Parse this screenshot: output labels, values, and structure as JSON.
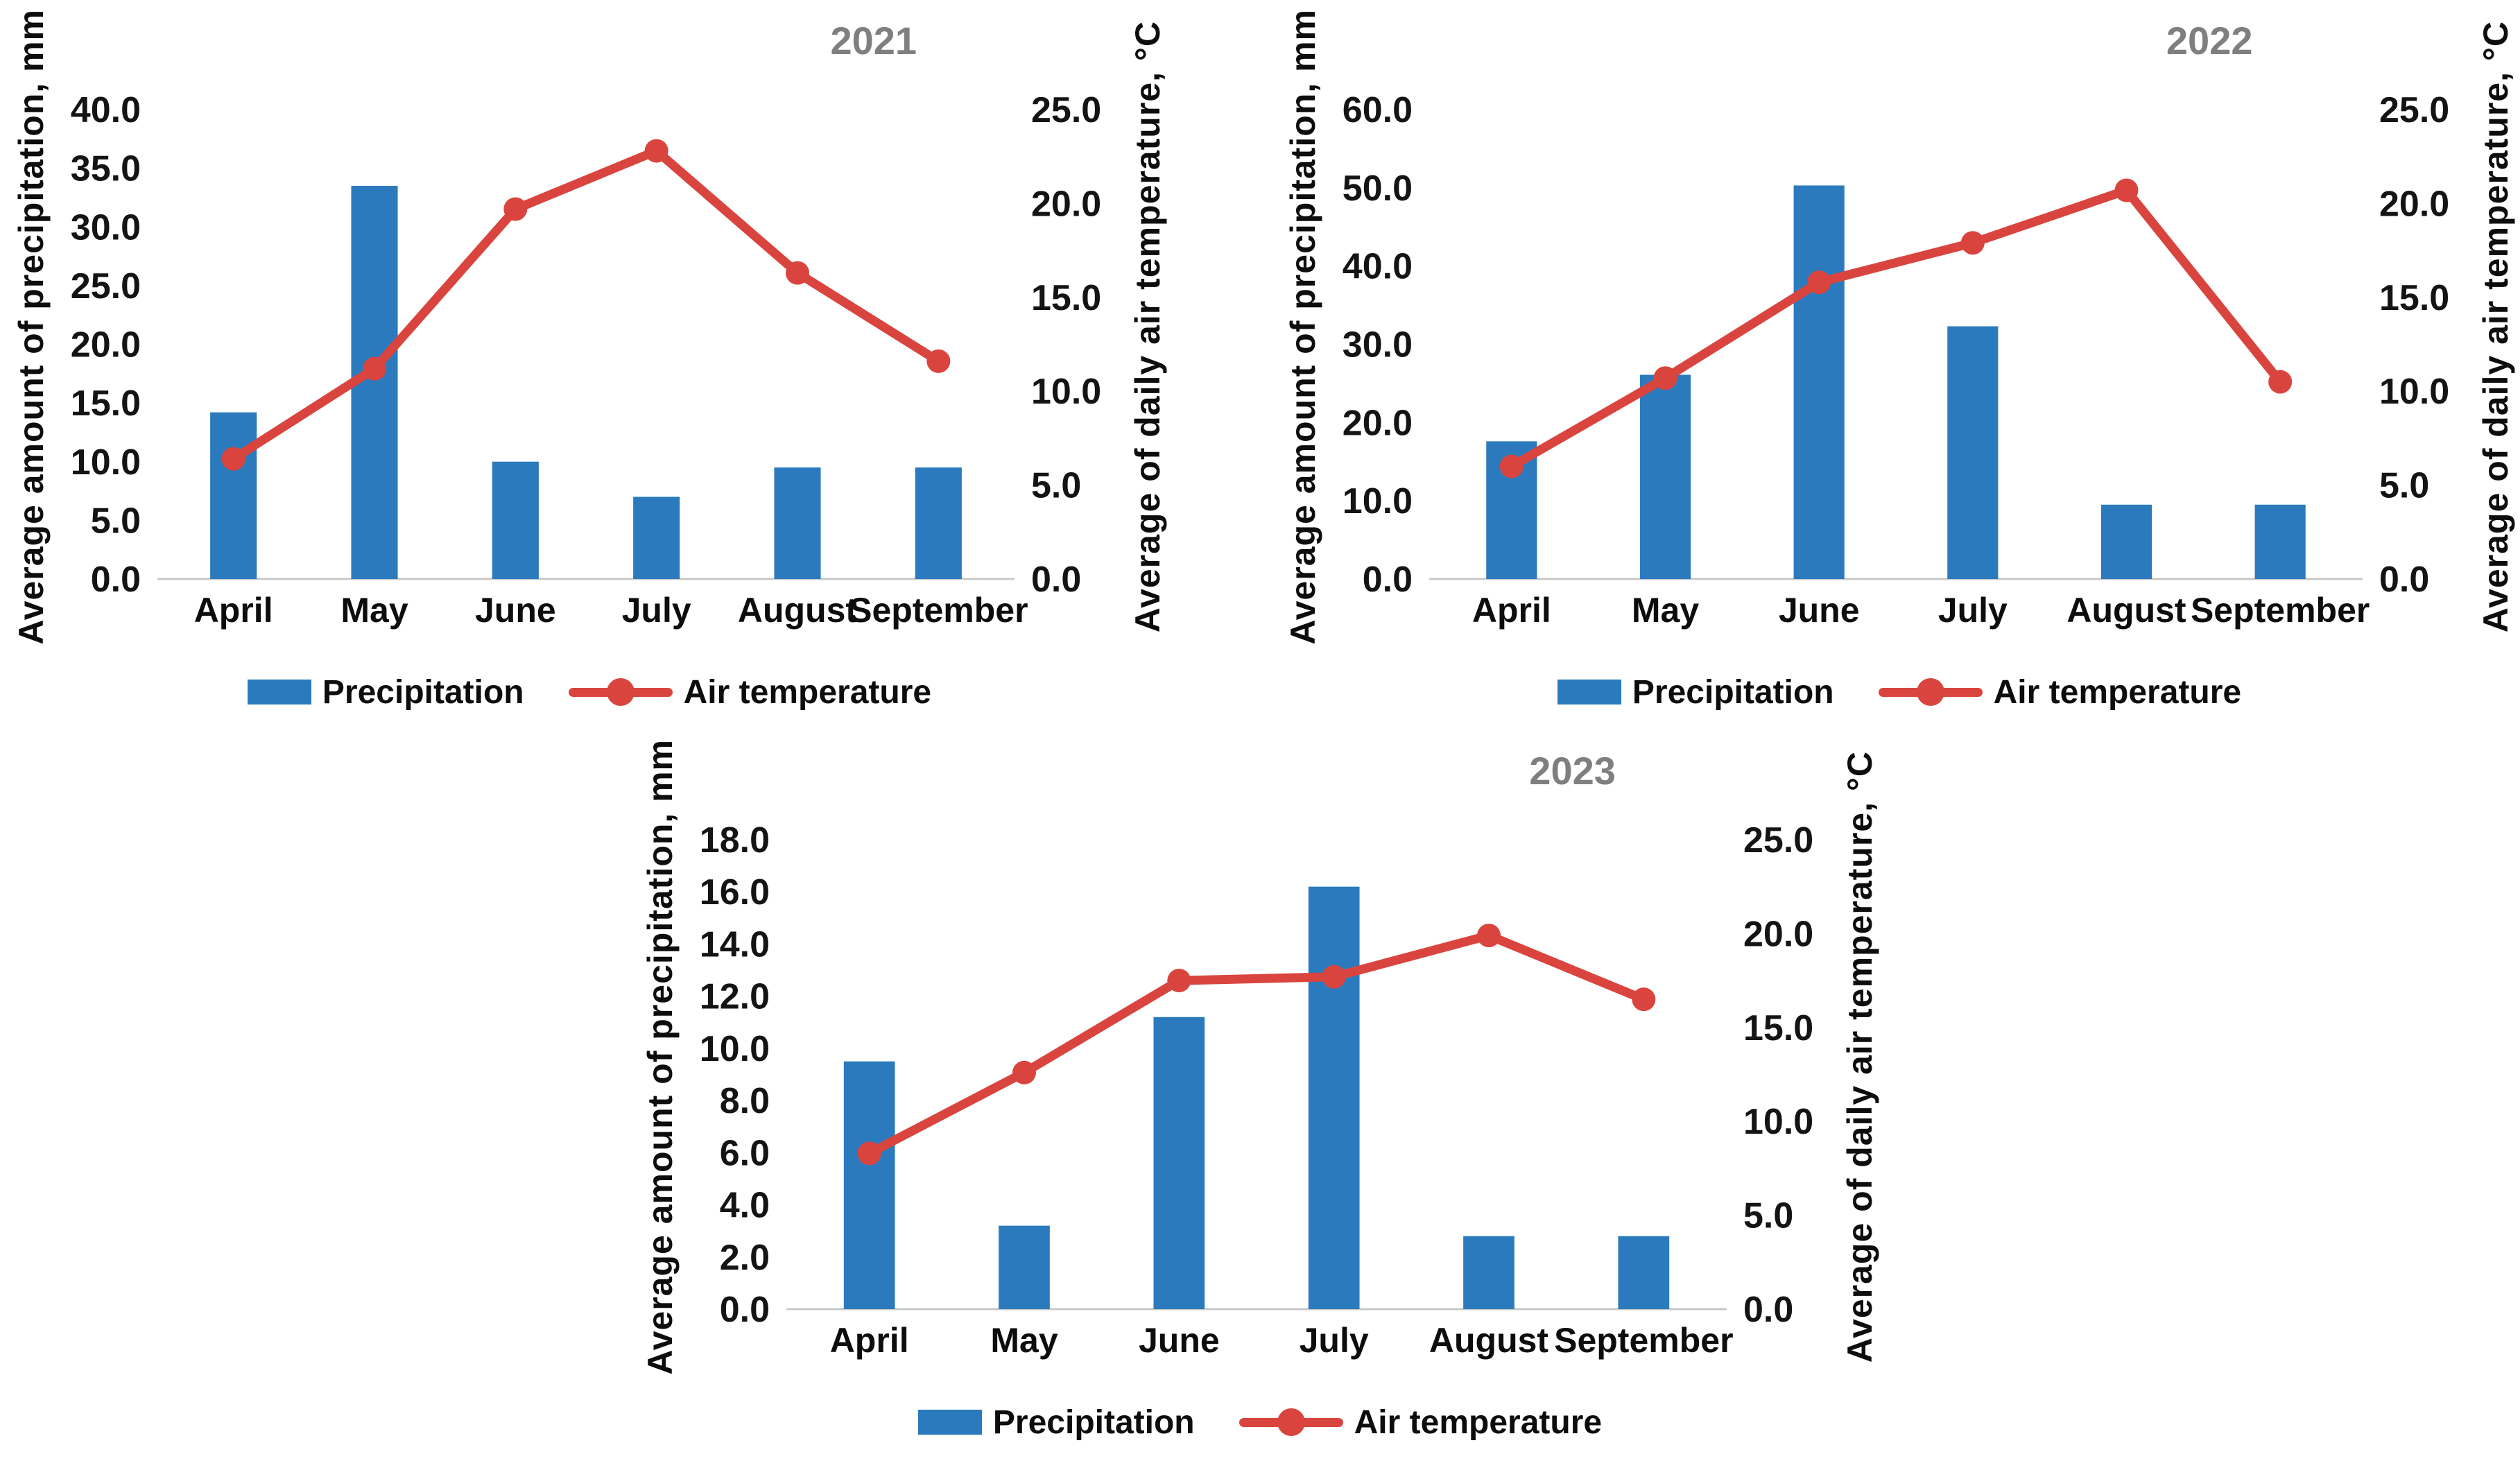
{
  "page": {
    "background": "#ffffff"
  },
  "colors": {
    "bar": "#2b7abd",
    "line": "#d9453e",
    "title": "#7f7f7f",
    "text": "#141414",
    "baseline": "#c8c8c8"
  },
  "chart_data": [
    {
      "type": "bar+line",
      "title": "2021",
      "categories": [
        "April",
        "May",
        "June",
        "July",
        "August",
        "September"
      ],
      "series": [
        {
          "name": "Precipitation",
          "type": "bar",
          "axis": "left",
          "values": [
            14.2,
            33.5,
            10.0,
            7.0,
            9.5,
            9.5
          ]
        },
        {
          "name": "Air temperature",
          "type": "line",
          "axis": "right",
          "values": [
            6.4,
            11.2,
            19.7,
            22.8,
            16.3,
            11.6
          ]
        }
      ],
      "left_axis": {
        "label": "Average amount of precipitation, mm",
        "min": 0,
        "max": 40,
        "step": 5
      },
      "right_axis": {
        "label": "Average of daily air temperature, °C",
        "min": 0,
        "max": 25,
        "step": 5
      },
      "legend": [
        "Precipitation",
        "Air temperature"
      ],
      "legend_position": "bottom",
      "grid": false
    },
    {
      "type": "bar+line",
      "title": "2022",
      "categories": [
        "April",
        "May",
        "June",
        "July",
        "August",
        "September"
      ],
      "series": [
        {
          "name": "Precipitation",
          "type": "bar",
          "axis": "left",
          "values": [
            17.6,
            26.1,
            50.3,
            32.3,
            9.5,
            9.5
          ]
        },
        {
          "name": "Air temperature",
          "type": "line",
          "axis": "right",
          "values": [
            6.0,
            10.7,
            15.8,
            17.9,
            20.7,
            10.5
          ]
        }
      ],
      "left_axis": {
        "label": "Average amount of precipitation, mm",
        "min": 0,
        "max": 60,
        "step": 10
      },
      "right_axis": {
        "label": "Average of daily air temperature, °C",
        "min": 0,
        "max": 25,
        "step": 5
      },
      "legend": [
        "Precipitation",
        "Air temperature"
      ],
      "legend_position": "bottom",
      "grid": false
    },
    {
      "type": "bar+line",
      "title": "2023",
      "categories": [
        "April",
        "May",
        "June",
        "July",
        "August",
        "September"
      ],
      "series": [
        {
          "name": "Precipitation",
          "type": "bar",
          "axis": "left",
          "values": [
            9.5,
            3.2,
            11.2,
            16.2,
            2.8,
            2.8
          ]
        },
        {
          "name": "Air temperature",
          "type": "line",
          "axis": "right",
          "values": [
            8.3,
            12.6,
            17.5,
            17.7,
            19.9,
            16.5
          ]
        }
      ],
      "left_axis": {
        "label": "Average amount of precipitation, mm",
        "min": 0,
        "max": 18,
        "step": 2
      },
      "right_axis": {
        "label": "Average of daily air temperature, °C",
        "min": 0,
        "max": 25,
        "step": 5
      },
      "legend": [
        "Precipitation",
        "Air temperature"
      ],
      "legend_position": "bottom",
      "grid": false
    }
  ]
}
